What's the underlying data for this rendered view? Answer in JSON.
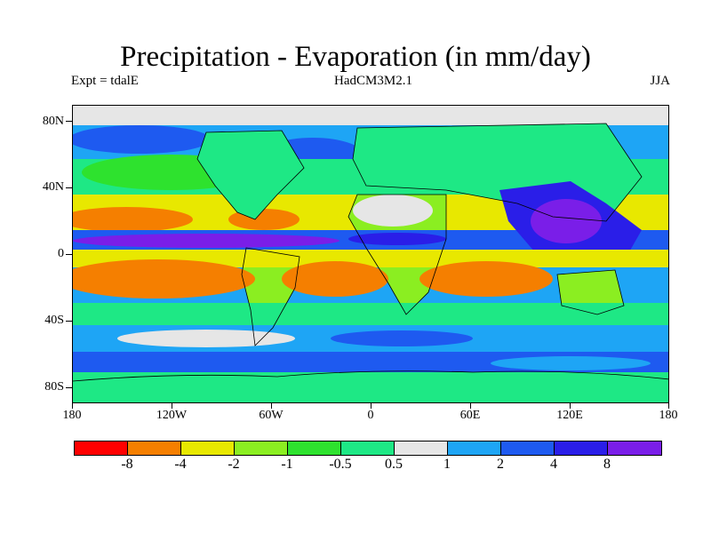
{
  "title": "Precipitation - Evaporation (in mm/day)",
  "subtitle_left": "Expt = tdalE",
  "subtitle_center": "HadCM3M2.1",
  "subtitle_right": "JJA",
  "y_axis_labels": [
    "80N",
    "40N",
    "0",
    "40S",
    "80S"
  ],
  "x_axis_labels": [
    "180",
    "120W",
    "60W",
    "0",
    "60E",
    "120E",
    "180"
  ],
  "colorbar": {
    "colors": [
      "#ff0000",
      "#f57f00",
      "#e8e800",
      "#8bee21",
      "#2ee22e",
      "#1ee885",
      "#e6e6e6",
      "#1ea5f5",
      "#1e5af0",
      "#2a1ee8",
      "#7a1ee8"
    ],
    "labels": [
      "-8",
      "-4",
      "-2",
      "-1",
      "-0.5",
      "0.5",
      "1",
      "2",
      "4",
      "8"
    ]
  }
}
